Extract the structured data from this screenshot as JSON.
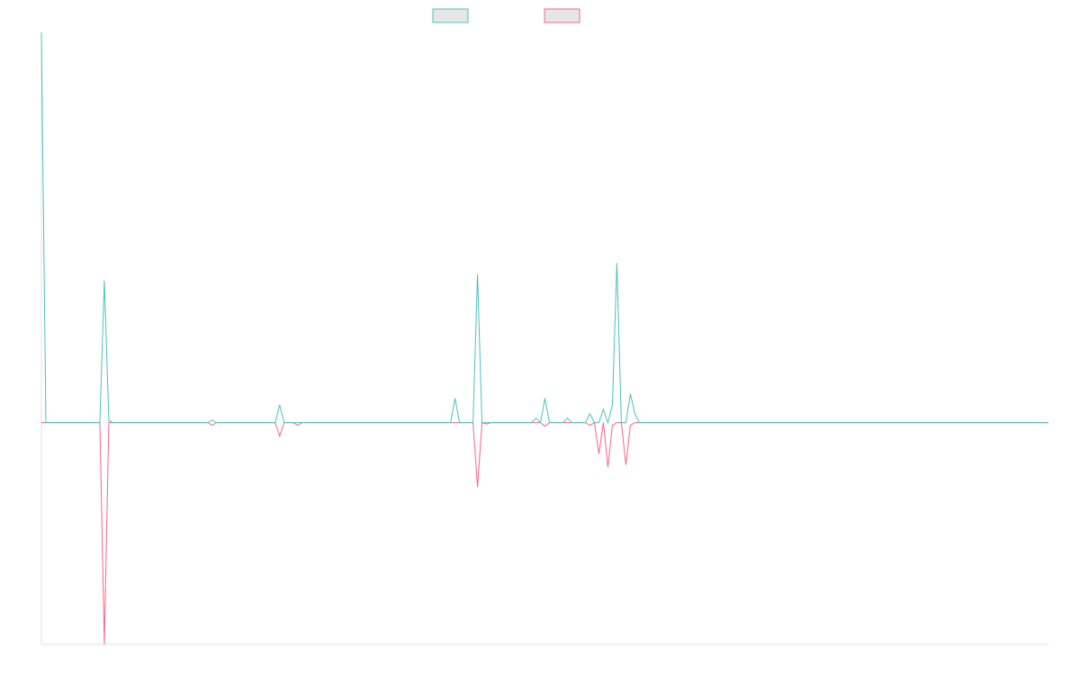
{
  "chart_data": {
    "type": "line",
    "title": "",
    "xlabel": "",
    "ylabel": "",
    "grid": false,
    "legend_position": "top-center",
    "x_range": [
      0,
      224
    ],
    "ylim": [
      -50,
      88
    ],
    "series": [
      {
        "legend_fill": "#e6e6e6",
        "color": "#4bc0c0",
        "points": [
          [
            0,
            88
          ],
          [
            1,
            0
          ],
          [
            13,
            0
          ],
          [
            14,
            32
          ],
          [
            15,
            0.5
          ],
          [
            16,
            0
          ],
          [
            37,
            0
          ],
          [
            38,
            0.6
          ],
          [
            39,
            0
          ],
          [
            52,
            0
          ],
          [
            53,
            4
          ],
          [
            54,
            0
          ],
          [
            56,
            0
          ],
          [
            57,
            0
          ],
          [
            91,
            0
          ],
          [
            92,
            5.5
          ],
          [
            93,
            0
          ],
          [
            96,
            0
          ],
          [
            97,
            33.5
          ],
          [
            98,
            0
          ],
          [
            99,
            0
          ],
          [
            109,
            0
          ],
          [
            110,
            1
          ],
          [
            111,
            0
          ],
          [
            112,
            5.5
          ],
          [
            113,
            0
          ],
          [
            116,
            0
          ],
          [
            117,
            1
          ],
          [
            118,
            0
          ],
          [
            121,
            0
          ],
          [
            122,
            2
          ],
          [
            123,
            0
          ],
          [
            124,
            0
          ],
          [
            125,
            3
          ],
          [
            126,
            0
          ],
          [
            127,
            4
          ],
          [
            128,
            36
          ],
          [
            129,
            0
          ],
          [
            130,
            0
          ],
          [
            131,
            6.5
          ],
          [
            132,
            2
          ],
          [
            133,
            0
          ],
          [
            224,
            0
          ]
        ]
      },
      {
        "legend_fill": "#e6e6e6",
        "color": "#ff6384",
        "points": [
          [
            0,
            0
          ],
          [
            1,
            0
          ],
          [
            13,
            0
          ],
          [
            14,
            -50
          ],
          [
            15,
            0
          ],
          [
            16,
            0
          ],
          [
            37,
            0
          ],
          [
            38,
            -0.6
          ],
          [
            39,
            0
          ],
          [
            52,
            0
          ],
          [
            53,
            -3
          ],
          [
            54,
            0
          ],
          [
            56,
            0
          ],
          [
            57,
            -0.6
          ],
          [
            58,
            0
          ],
          [
            91,
            0
          ],
          [
            96,
            0
          ],
          [
            97,
            -14.5
          ],
          [
            98,
            0
          ],
          [
            99,
            -0.3
          ],
          [
            100,
            0
          ],
          [
            111,
            0
          ],
          [
            112,
            -0.8
          ],
          [
            113,
            0
          ],
          [
            116,
            0
          ],
          [
            117,
            0
          ],
          [
            121,
            0
          ],
          [
            122,
            -0.6
          ],
          [
            123,
            0
          ],
          [
            124,
            -7
          ],
          [
            125,
            0
          ],
          [
            126,
            -10
          ],
          [
            127,
            -0.6
          ],
          [
            128,
            0
          ],
          [
            129,
            0
          ],
          [
            130,
            -9.5
          ],
          [
            131,
            -0.6
          ],
          [
            132,
            0
          ],
          [
            224,
            0
          ]
        ]
      }
    ]
  }
}
